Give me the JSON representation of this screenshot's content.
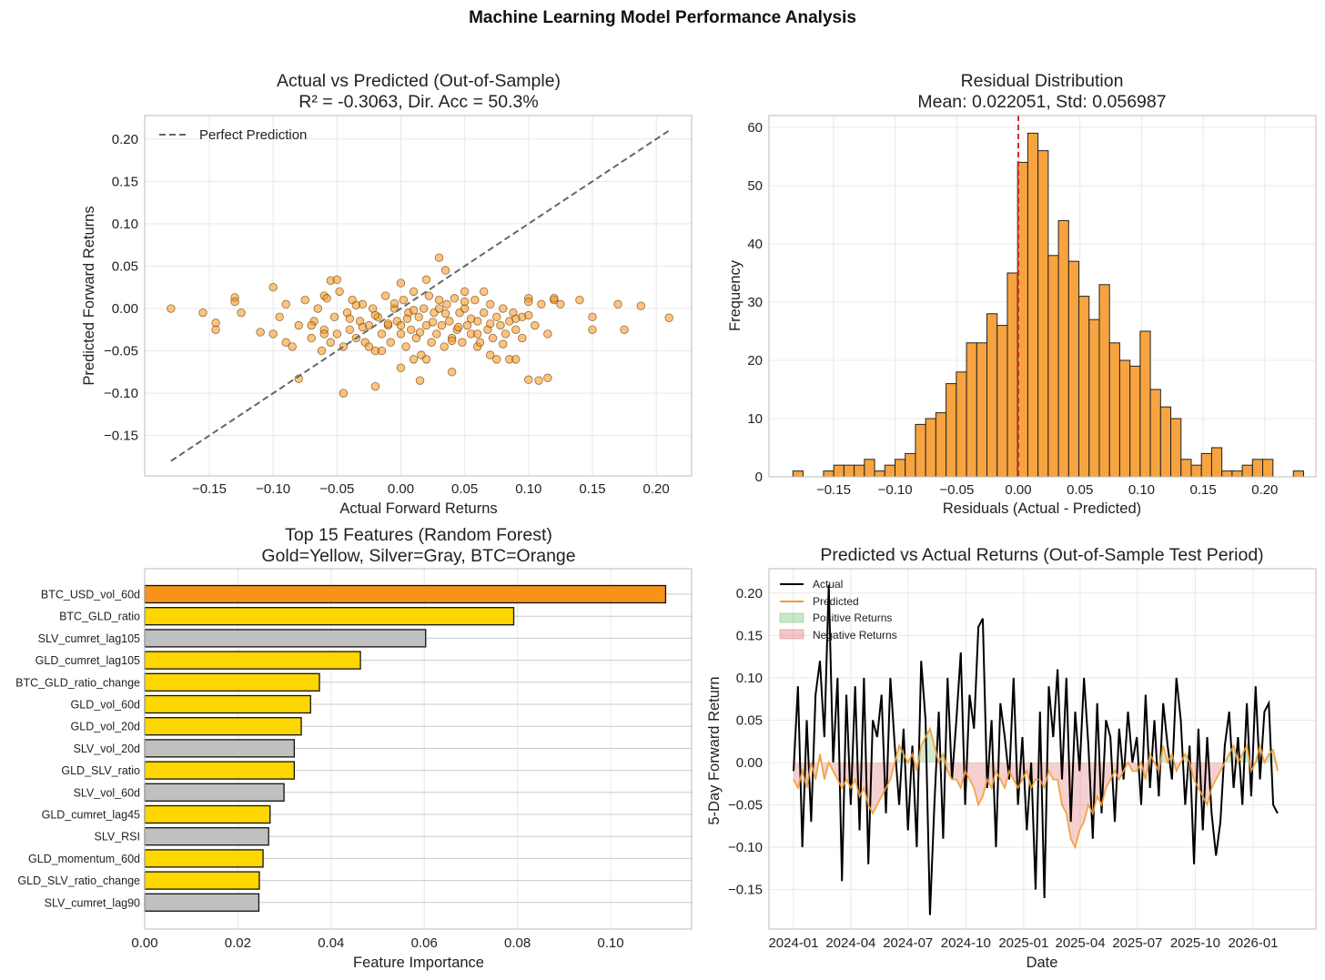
{
  "suptitle": "Machine Learning Model Performance Analysis",
  "chart_data": [
    {
      "type": "scatter",
      "title_line1": "Actual vs Predicted (Out-of-Sample)",
      "title_line2": "R² = -0.3063, Dir. Acc = 50.3%",
      "xlabel": "Actual Forward Returns",
      "ylabel": "Predicted Forward Returns",
      "xticks": [
        -0.15,
        -0.1,
        -0.05,
        0.0,
        0.05,
        0.1,
        0.15,
        0.2
      ],
      "xtick_labels": [
        "−0.15",
        "−0.10",
        "−0.05",
        "0.00",
        "0.05",
        "0.10",
        "0.15",
        "0.20"
      ],
      "yticks": [
        -0.15,
        -0.1,
        -0.05,
        0.0,
        0.05,
        0.1,
        0.15,
        0.2
      ],
      "ytick_labels": [
        "−0.15",
        "−0.10",
        "−0.05",
        "0.00",
        "0.05",
        "0.10",
        "0.15",
        "0.20"
      ],
      "legend": [
        "Perfect Prediction"
      ],
      "legend_position": "top-left",
      "reference_line": [
        [
          -0.18,
          -0.18
        ],
        [
          0.21,
          0.21
        ]
      ],
      "point_color": "#f7931a",
      "x": [
        -0.18,
        -0.155,
        -0.145,
        -0.145,
        -0.13,
        -0.13,
        -0.125,
        -0.11,
        -0.1,
        -0.09,
        -0.08,
        -0.06,
        -0.055,
        -0.05,
        -0.045,
        0.0,
        0.02,
        0.03,
        0.035,
        0.05,
        0.065,
        0.1,
        0.12,
        0.15,
        0.15,
        0.17,
        0.188,
        0.21,
        0.14,
        0.175,
        0.108,
        0.1,
        0.115,
        0.04,
        0.015,
        -0.02,
        0.0,
        0.01,
        0.075,
        0.085,
        0.09,
        0.095,
        0.06,
        0.07,
        -0.1,
        -0.095,
        -0.09,
        -0.085,
        -0.08,
        -0.075,
        -0.07,
        -0.068,
        -0.065,
        -0.062,
        -0.06,
        -0.058,
        -0.055,
        -0.052,
        -0.05,
        -0.048,
        -0.045,
        -0.042,
        -0.04,
        -0.038,
        -0.035,
        -0.032,
        -0.03,
        -0.028,
        -0.025,
        -0.022,
        -0.02,
        -0.018,
        -0.015,
        -0.012,
        -0.01,
        -0.008,
        -0.005,
        -0.003,
        0.0,
        0.002,
        0.004,
        0.006,
        0.008,
        0.01,
        0.012,
        0.014,
        0.016,
        0.018,
        0.02,
        0.022,
        0.024,
        0.026,
        0.028,
        0.03,
        0.032,
        0.034,
        0.036,
        0.038,
        0.04,
        0.042,
        0.044,
        0.046,
        0.048,
        0.05,
        0.052,
        0.055,
        0.058,
        0.06,
        0.062,
        0.065,
        0.068,
        0.07,
        0.072,
        0.075,
        0.078,
        0.08,
        0.082,
        0.085,
        0.088,
        0.09,
        0.095,
        0.1,
        0.105,
        0.11,
        0.115,
        0.12,
        0.125,
        -0.04,
        -0.03,
        -0.02,
        -0.01,
        0.0,
        0.005,
        0.015,
        0.025,
        0.035,
        0.045,
        0.055,
        -0.035,
        -0.025,
        -0.015,
        -0.005,
        0.01,
        0.02,
        0.03,
        0.04,
        0.05,
        0.06,
        0.07,
        0.08,
        -0.06,
        -0.07,
        0.09,
        0.1
      ],
      "y": [
        0.0,
        -0.005,
        -0.017,
        -0.025,
        0.013,
        0.008,
        -0.005,
        -0.028,
        0.025,
        -0.04,
        -0.083,
        0.015,
        0.033,
        0.034,
        -0.1,
        0.03,
        0.034,
        0.06,
        0.045,
        0.02,
        0.02,
        0.012,
        0.01,
        -0.01,
        -0.025,
        0.005,
        0.003,
        -0.011,
        0.01,
        -0.025,
        -0.085,
        -0.084,
        -0.082,
        -0.075,
        -0.085,
        -0.092,
        -0.07,
        -0.06,
        -0.06,
        -0.06,
        -0.06,
        -0.035,
        -0.045,
        -0.055,
        -0.03,
        -0.01,
        0.005,
        -0.045,
        -0.02,
        0.01,
        -0.035,
        -0.015,
        0.0,
        -0.05,
        -0.025,
        0.012,
        -0.04,
        -0.01,
        -0.03,
        0.02,
        -0.045,
        -0.005,
        -0.025,
        0.01,
        -0.035,
        -0.015,
        0.005,
        -0.04,
        -0.02,
        0.0,
        -0.05,
        -0.01,
        -0.03,
        0.015,
        -0.02,
        -0.04,
        0.0,
        -0.015,
        -0.03,
        0.01,
        -0.045,
        -0.005,
        -0.025,
        0.02,
        -0.035,
        -0.01,
        -0.055,
        0.0,
        -0.02,
        0.015,
        -0.04,
        -0.005,
        -0.03,
        0.01,
        -0.02,
        -0.045,
        0.005,
        -0.015,
        -0.035,
        0.012,
        -0.025,
        -0.005,
        -0.04,
        0.0,
        -0.02,
        -0.03,
        0.01,
        -0.015,
        -0.04,
        -0.005,
        -0.025,
        0.005,
        -0.035,
        -0.01,
        -0.02,
        0.0,
        -0.03,
        -0.015,
        -0.005,
        -0.025,
        -0.01,
        0.008,
        -0.02,
        0.005,
        -0.03,
        0.012,
        0.005,
        -0.012,
        -0.022,
        -0.008,
        -0.018,
        -0.02,
        -0.012,
        -0.028,
        -0.016,
        -0.006,
        -0.022,
        -0.012,
        0.004,
        -0.045,
        -0.05,
        0.006,
        -0.002,
        -0.06,
        0.0,
        -0.038,
        0.008,
        -0.03,
        -0.018,
        -0.042,
        -0.03,
        -0.02,
        -0.012,
        -0.008
      ]
    },
    {
      "type": "bar",
      "subtype": "histogram",
      "title_line1": "Residual Distribution",
      "title_line2": "Mean: 0.022051, Std: 0.056987",
      "xlabel": "Residuals (Actual - Predicted)",
      "ylabel": "Frequency",
      "xticks": [
        -0.15,
        -0.1,
        -0.05,
        0.0,
        0.05,
        0.1,
        0.15,
        0.2
      ],
      "xtick_labels": [
        "−0.15",
        "−0.10",
        "−0.05",
        "0.00",
        "0.05",
        "0.10",
        "0.15",
        "0.20"
      ],
      "yticks": [
        0,
        10,
        20,
        30,
        40,
        50,
        60
      ],
      "ytick_labels": [
        "0",
        "10",
        "20",
        "30",
        "40",
        "50",
        "60"
      ],
      "bin_start": -0.183,
      "bin_width": 0.00829,
      "counts": [
        1,
        0,
        0,
        1,
        2,
        2,
        2,
        3,
        1,
        2,
        3,
        4,
        9,
        10,
        11,
        16,
        18,
        23,
        23,
        28,
        26,
        35,
        54,
        59,
        56,
        38,
        44,
        37,
        31,
        27,
        33,
        23,
        20,
        19,
        25,
        15,
        12,
        10,
        3,
        2,
        4,
        5,
        1,
        1,
        2,
        3,
        3,
        0,
        0,
        1
      ],
      "mean_line": 0.0,
      "bar_color": "#f7a440",
      "line_color": "#d62728"
    },
    {
      "type": "bar",
      "orientation": "horizontal",
      "title_line1": "Top 15 Features (Random Forest)",
      "title_line2": "Gold=Yellow, Silver=Gray, BTC=Orange",
      "xlabel": "Feature Importance",
      "xticks": [
        0.0,
        0.02,
        0.04,
        0.06,
        0.08,
        0.1
      ],
      "xtick_labels": [
        "0.00",
        "0.02",
        "0.04",
        "0.06",
        "0.08",
        "0.10"
      ],
      "categories": [
        "BTC_USD_vol_60d",
        "BTC_GLD_ratio",
        "SLV_cumret_lag105",
        "GLD_cumret_lag105",
        "BTC_GLD_ratio_change",
        "GLD_vol_60d",
        "GLD_vol_20d",
        "SLV_vol_20d",
        "GLD_SLV_ratio",
        "SLV_vol_60d",
        "GLD_cumret_lag45",
        "SLV_RSI",
        "GLD_momentum_60d",
        "GLD_SLV_ratio_change",
        "SLV_cumret_lag90"
      ],
      "values": [
        0.1118,
        0.0792,
        0.0603,
        0.0463,
        0.0375,
        0.0356,
        0.0336,
        0.0321,
        0.0321,
        0.0299,
        0.0269,
        0.0266,
        0.0254,
        0.0246,
        0.0245
      ],
      "colors": [
        "#f7931a",
        "#ffd700",
        "#c0c0c0",
        "#ffd700",
        "#ffd700",
        "#ffd700",
        "#ffd700",
        "#c0c0c0",
        "#ffd700",
        "#c0c0c0",
        "#ffd700",
        "#c0c0c0",
        "#ffd700",
        "#ffd700",
        "#c0c0c0"
      ]
    },
    {
      "type": "line",
      "title": "Predicted vs Actual Returns (Out-of-Sample Test Period)",
      "xlabel": "Date",
      "ylabel": "5-Day Forward Return",
      "xtick_labels": [
        "2024-01",
        "2024-04",
        "2024-07",
        "2024-10",
        "2025-01",
        "2025-04",
        "2025-07",
        "2025-10",
        "2026-01"
      ],
      "xtick_days_from_start": [
        0,
        91,
        182,
        274,
        366,
        456,
        547,
        639,
        731
      ],
      "yticks": [
        -0.15,
        -0.1,
        -0.05,
        0.0,
        0.05,
        0.1,
        0.15,
        0.2
      ],
      "ytick_labels": [
        "−0.15",
        "−0.10",
        "−0.05",
        "0.00",
        "0.05",
        "0.10",
        "0.15",
        "0.20"
      ],
      "start_date": "2024-01-01",
      "step_days": 7,
      "legend": [
        "Actual",
        "Predicted",
        "Positive Returns",
        "Negative Returns"
      ],
      "legend_position": "top-left",
      "series": [
        {
          "name": "Actual",
          "color": "#000000",
          "values": [
            -0.01,
            0.09,
            -0.1,
            0.05,
            -0.07,
            0.08,
            0.12,
            0.03,
            0.21,
            0.0,
            0.1,
            -0.14,
            0.08,
            -0.05,
            0.09,
            -0.08,
            0.1,
            -0.12,
            0.05,
            0.03,
            0.08,
            -0.06,
            0.1,
            0.02,
            -0.05,
            0.04,
            -0.08,
            0.02,
            -0.1,
            0.12,
            0.05,
            -0.18,
            -0.05,
            0.06,
            -0.09,
            0.1,
            -0.02,
            0.05,
            0.13,
            -0.05,
            0.08,
            0.04,
            0.16,
            0.17,
            -0.03,
            0.05,
            -0.1,
            0.07,
            0.03,
            -0.02,
            0.1,
            -0.05,
            0.03,
            -0.08,
            0.0,
            -0.15,
            0.06,
            -0.16,
            0.09,
            0.03,
            0.11,
            -0.02,
            0.1,
            -0.07,
            0.06,
            -0.01,
            0.1,
            0.02,
            -0.09,
            0.07,
            -0.06,
            0.05,
            0.03,
            -0.07,
            0.04,
            -0.02,
            0.06,
            0.0,
            0.03,
            -0.05,
            0.08,
            -0.03,
            0.05,
            -0.04,
            0.07,
            0.02,
            -0.02,
            0.1,
            0.05,
            -0.05,
            0.02,
            -0.12,
            0.04,
            -0.08,
            0.03,
            -0.06,
            -0.11,
            -0.07,
            0.02,
            0.06,
            -0.03,
            0.03,
            -0.05,
            0.07,
            -0.04,
            0.09,
            -0.02,
            0.06,
            0.07,
            -0.05,
            -0.06
          ]
        },
        {
          "name": "Predicted",
          "color": "#f39c34",
          "values": [
            -0.02,
            -0.03,
            -0.01,
            -0.03,
            0.0,
            -0.02,
            0.01,
            -0.02,
            0.0,
            -0.01,
            -0.02,
            -0.03,
            -0.02,
            -0.03,
            -0.02,
            -0.04,
            -0.03,
            -0.05,
            -0.06,
            -0.05,
            -0.04,
            -0.03,
            -0.02,
            0.0,
            0.02,
            0.01,
            0.0,
            0.01,
            -0.01,
            0.02,
            0.03,
            0.04,
            0.02,
            0.0,
            0.01,
            -0.01,
            -0.02,
            -0.02,
            -0.03,
            -0.01,
            -0.02,
            -0.03,
            -0.05,
            -0.04,
            -0.02,
            -0.03,
            -0.01,
            -0.02,
            -0.03,
            -0.01,
            -0.02,
            -0.03,
            -0.02,
            -0.01,
            -0.03,
            -0.02,
            -0.02,
            -0.03,
            -0.01,
            -0.02,
            -0.02,
            -0.05,
            -0.06,
            -0.09,
            -0.1,
            -0.08,
            -0.07,
            -0.05,
            -0.06,
            -0.04,
            -0.05,
            -0.03,
            -0.02,
            -0.01,
            -0.02,
            -0.01,
            0.0,
            -0.01,
            -0.01,
            0.0,
            -0.02,
            0.01,
            0.0,
            -0.01,
            0.02,
            0.0,
            0.01,
            -0.01,
            0.0,
            0.01,
            0.0,
            -0.02,
            -0.03,
            -0.04,
            -0.05,
            -0.03,
            -0.02,
            -0.01,
            0.0,
            0.01,
            0.02,
            0.0,
            0.01,
            0.02,
            -0.01,
            0.0,
            0.02,
            0.0,
            0.01,
            0.015,
            -0.01
          ]
        }
      ],
      "fill_positive_color": "#2ca02c",
      "fill_negative_color": "#d62728"
    }
  ]
}
